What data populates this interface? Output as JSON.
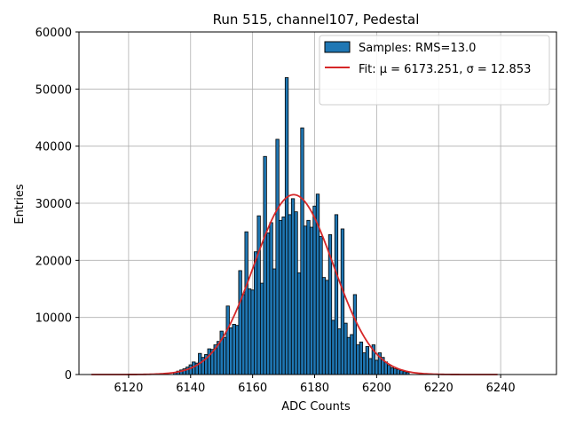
{
  "chart_data": {
    "type": "bar",
    "title": "Run 515, channel107, Pedestal",
    "xlabel": "ADC Counts",
    "ylabel": "Entries",
    "xlim": [
      6104,
      6258
    ],
    "ylim": [
      0,
      60000
    ],
    "xticks": [
      6120,
      6140,
      6160,
      6180,
      6200,
      6220,
      6240
    ],
    "yticks": [
      0,
      10000,
      20000,
      30000,
      40000,
      50000,
      60000
    ],
    "grid": true,
    "legend_position": "top-right",
    "bar_color": "#1f77b4",
    "fit_color": "#d62728",
    "legend": {
      "samples_label": "Samples: RMS=13.0",
      "fit_label": "Fit: μ = 6173.251, σ = 12.853"
    },
    "histogram": {
      "bin_width": 1,
      "bins": [
        [
          6135,
          400
        ],
        [
          6136,
          600
        ],
        [
          6137,
          800
        ],
        [
          6138,
          1000
        ],
        [
          6139,
          1300
        ],
        [
          6140,
          1700
        ],
        [
          6141,
          2200
        ],
        [
          6142,
          2000
        ],
        [
          6143,
          3700
        ],
        [
          6144,
          3000
        ],
        [
          6145,
          3500
        ],
        [
          6146,
          4500
        ],
        [
          6147,
          4400
        ],
        [
          6148,
          5200
        ],
        [
          6149,
          5800
        ],
        [
          6150,
          7600
        ],
        [
          6151,
          6500
        ],
        [
          6152,
          12000
        ],
        [
          6153,
          8200
        ],
        [
          6154,
          8800
        ],
        [
          6155,
          8600
        ],
        [
          6156,
          18200
        ],
        [
          6157,
          14000
        ],
        [
          6158,
          25000
        ],
        [
          6159,
          15000
        ],
        [
          6160,
          14800
        ],
        [
          6161,
          21500
        ],
        [
          6162,
          27800
        ],
        [
          6163,
          16000
        ],
        [
          6164,
          38200
        ],
        [
          6165,
          24800
        ],
        [
          6166,
          26600
        ],
        [
          6167,
          18500
        ],
        [
          6168,
          41200
        ],
        [
          6169,
          27000
        ],
        [
          6170,
          27600
        ],
        [
          6171,
          52000
        ],
        [
          6172,
          28000
        ],
        [
          6173,
          30800
        ],
        [
          6174,
          28500
        ],
        [
          6175,
          17800
        ],
        [
          6176,
          43200
        ],
        [
          6177,
          26000
        ],
        [
          6178,
          27000
        ],
        [
          6179,
          25800
        ],
        [
          6180,
          29500
        ],
        [
          6181,
          31600
        ],
        [
          6182,
          24200
        ],
        [
          6183,
          17000
        ],
        [
          6184,
          16500
        ],
        [
          6185,
          24500
        ],
        [
          6186,
          9500
        ],
        [
          6187,
          28000
        ],
        [
          6188,
          8000
        ],
        [
          6189,
          25500
        ],
        [
          6190,
          9000
        ],
        [
          6191,
          6500
        ],
        [
          6192,
          7000
        ],
        [
          6193,
          14000
        ],
        [
          6194,
          5200
        ],
        [
          6195,
          5700
        ],
        [
          6196,
          3800
        ],
        [
          6197,
          4900
        ],
        [
          6198,
          2800
        ],
        [
          6199,
          5200
        ],
        [
          6200,
          2500
        ],
        [
          6201,
          3800
        ],
        [
          6202,
          3000
        ],
        [
          6203,
          2200
        ],
        [
          6204,
          1600
        ],
        [
          6205,
          1200
        ],
        [
          6206,
          1000
        ],
        [
          6207,
          900
        ],
        [
          6208,
          700
        ],
        [
          6209,
          500
        ],
        [
          6210,
          350
        ]
      ]
    },
    "fit": {
      "mu": 6173.251,
      "sigma": 12.853,
      "amplitude": 31500,
      "x_range": [
        6108,
        6239
      ]
    }
  }
}
